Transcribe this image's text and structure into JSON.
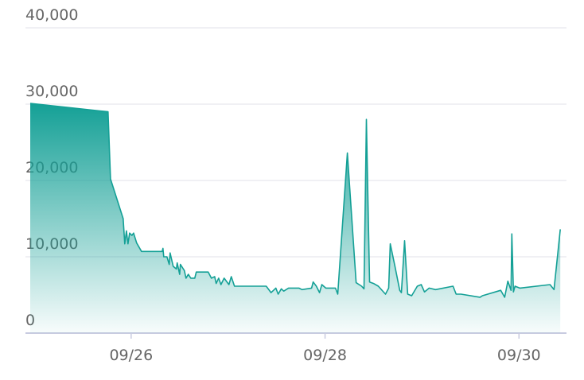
{
  "chart_data": {
    "type": "area",
    "color": "#14a096",
    "x": [
      24.959,
      25.762,
      25.787,
      25.918,
      25.934,
      25.951,
      25.967,
      25.984,
      26.008,
      26.025,
      26.057,
      26.107,
      26.32,
      26.328,
      26.336,
      26.369,
      26.393,
      26.402,
      26.434,
      26.467,
      26.475,
      26.5,
      26.508,
      26.549,
      26.566,
      26.59,
      26.615,
      26.656,
      26.672,
      26.795,
      26.828,
      26.861,
      26.877,
      26.902,
      26.926,
      26.959,
      27.008,
      27.033,
      27.066,
      27.393,
      27.443,
      27.492,
      27.516,
      27.549,
      27.574,
      27.623,
      27.73,
      27.762,
      27.861,
      27.877,
      27.91,
      27.943,
      27.967,
      28.008,
      28.107,
      28.131,
      28.23,
      28.32,
      28.377,
      28.402,
      28.426,
      28.459,
      28.5,
      28.549,
      28.623,
      28.656,
      28.672,
      28.721,
      28.77,
      28.787,
      28.82,
      28.852,
      28.893,
      28.951,
      28.992,
      29.025,
      29.074,
      29.139,
      29.32,
      29.352,
      29.402,
      29.598,
      29.623,
      29.811,
      29.852,
      29.885,
      29.918,
      29.926,
      29.943,
      29.959,
      30.008,
      30.32,
      30.361,
      30.426
    ],
    "values": [
      30100,
      29000,
      20200,
      15000,
      11700,
      13400,
      11700,
      13100,
      12800,
      13100,
      11800,
      10700,
      10700,
      11100,
      10000,
      10000,
      9000,
      10500,
      8750,
      8400,
      9200,
      7700,
      9000,
      8200,
      7200,
      7700,
      7200,
      7200,
      8000,
      8000,
      7200,
      7400,
      6500,
      7200,
      6350,
      7200,
      6350,
      7400,
      6150,
      6150,
      5300,
      5900,
      5100,
      5800,
      5500,
      5900,
      5900,
      5700,
      5900,
      6700,
      6150,
      5300,
      6350,
      5900,
      5900,
      5100,
      23600,
      6600,
      6150,
      5800,
      28000,
      6700,
      6500,
      6150,
      5100,
      5900,
      11700,
      8750,
      5600,
      5300,
      12100,
      5100,
      4900,
      6150,
      6350,
      5400,
      5900,
      5700,
      6150,
      5100,
      5100,
      4700,
      4900,
      5600,
      4700,
      6800,
      5600,
      13000,
      5400,
      6150,
      5900,
      6350,
      5700,
      13600
    ],
    "xlim": [
      24.91,
      30.49
    ],
    "xticks": [
      {
        "value": 26,
        "label": "09/26"
      },
      {
        "value": 28,
        "label": "09/28"
      },
      {
        "value": 30,
        "label": "09/30"
      }
    ],
    "ylim": [
      0,
      40000
    ],
    "yticks": [
      0,
      {
        "value": 10000,
        "label": "10,000"
      },
      {
        "value": 20000,
        "label": "20,000"
      },
      {
        "value": 30000,
        "label": "30,000"
      },
      {
        "value": 40000,
        "label": "40,000"
      }
    ],
    "grid": true
  }
}
